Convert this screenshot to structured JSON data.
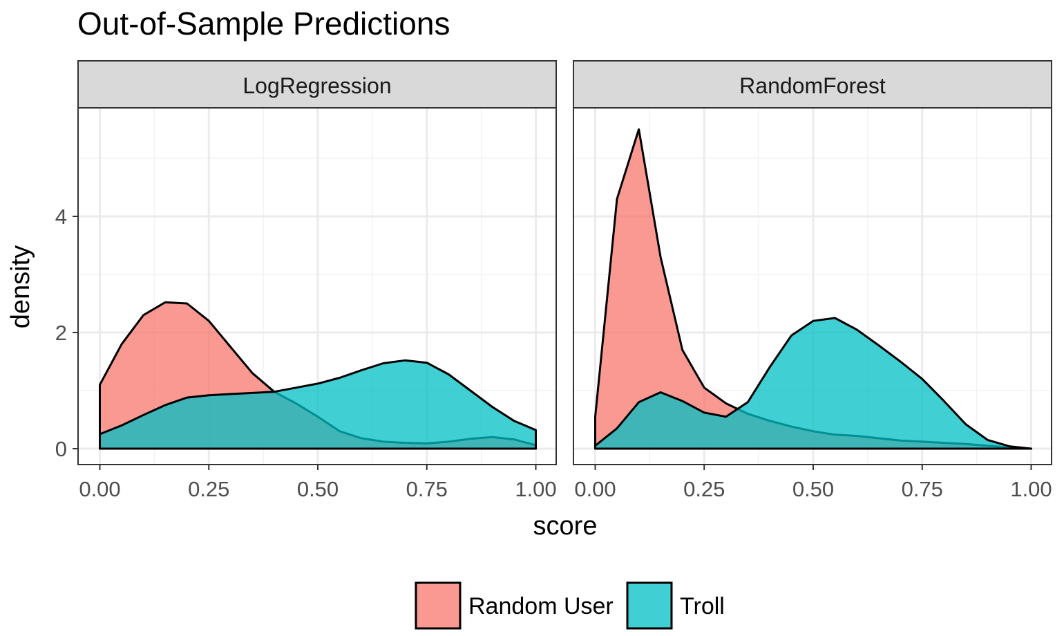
{
  "chart_data": {
    "type": "area",
    "chart_subtype": "density",
    "title": "Out-of-Sample Predictions",
    "xlabel": "score",
    "ylabel": "density",
    "xlim": [
      0,
      1
    ],
    "ylim": [
      0,
      5.6
    ],
    "x_ticks": [
      "0.00",
      "0.25",
      "0.50",
      "0.75",
      "1.00"
    ],
    "y_ticks": [
      "0",
      "2",
      "4"
    ],
    "grid": true,
    "legend_position": "bottom",
    "legend": [
      {
        "name": "Random User",
        "color": "#F8766D"
      },
      {
        "name": "Troll",
        "color": "#00BFC4"
      }
    ],
    "x": [
      0,
      0.05,
      0.1,
      0.15,
      0.2,
      0.25,
      0.3,
      0.35,
      0.4,
      0.45,
      0.5,
      0.55,
      0.6,
      0.65,
      0.7,
      0.75,
      0.8,
      0.85,
      0.9,
      0.95,
      1.0
    ],
    "panels": [
      {
        "name": "LogRegression",
        "series": [
          {
            "name": "Random User",
            "values": [
              1.1,
              1.8,
              2.3,
              2.52,
              2.5,
              2.2,
              1.75,
              1.3,
              0.98,
              0.78,
              0.55,
              0.3,
              0.18,
              0.12,
              0.1,
              0.09,
              0.12,
              0.17,
              0.2,
              0.16,
              0.06
            ]
          },
          {
            "name": "Troll",
            "values": [
              0.25,
              0.4,
              0.58,
              0.75,
              0.88,
              0.92,
              0.94,
              0.96,
              0.98,
              1.05,
              1.12,
              1.22,
              1.35,
              1.47,
              1.52,
              1.48,
              1.28,
              1.0,
              0.72,
              0.48,
              0.32
            ]
          }
        ]
      },
      {
        "name": "RandomForest",
        "series": [
          {
            "name": "Random User",
            "values": [
              0.55,
              4.3,
              5.5,
              3.3,
              1.7,
              1.05,
              0.78,
              0.6,
              0.48,
              0.38,
              0.3,
              0.24,
              0.22,
              0.18,
              0.14,
              0.12,
              0.1,
              0.08,
              0.05,
              0.02,
              0.0
            ]
          },
          {
            "name": "Troll",
            "values": [
              0.05,
              0.35,
              0.8,
              0.97,
              0.82,
              0.62,
              0.55,
              0.8,
              1.4,
              1.95,
              2.2,
              2.25,
              2.05,
              1.78,
              1.5,
              1.2,
              0.82,
              0.42,
              0.15,
              0.04,
              0.0
            ]
          }
        ]
      }
    ]
  }
}
